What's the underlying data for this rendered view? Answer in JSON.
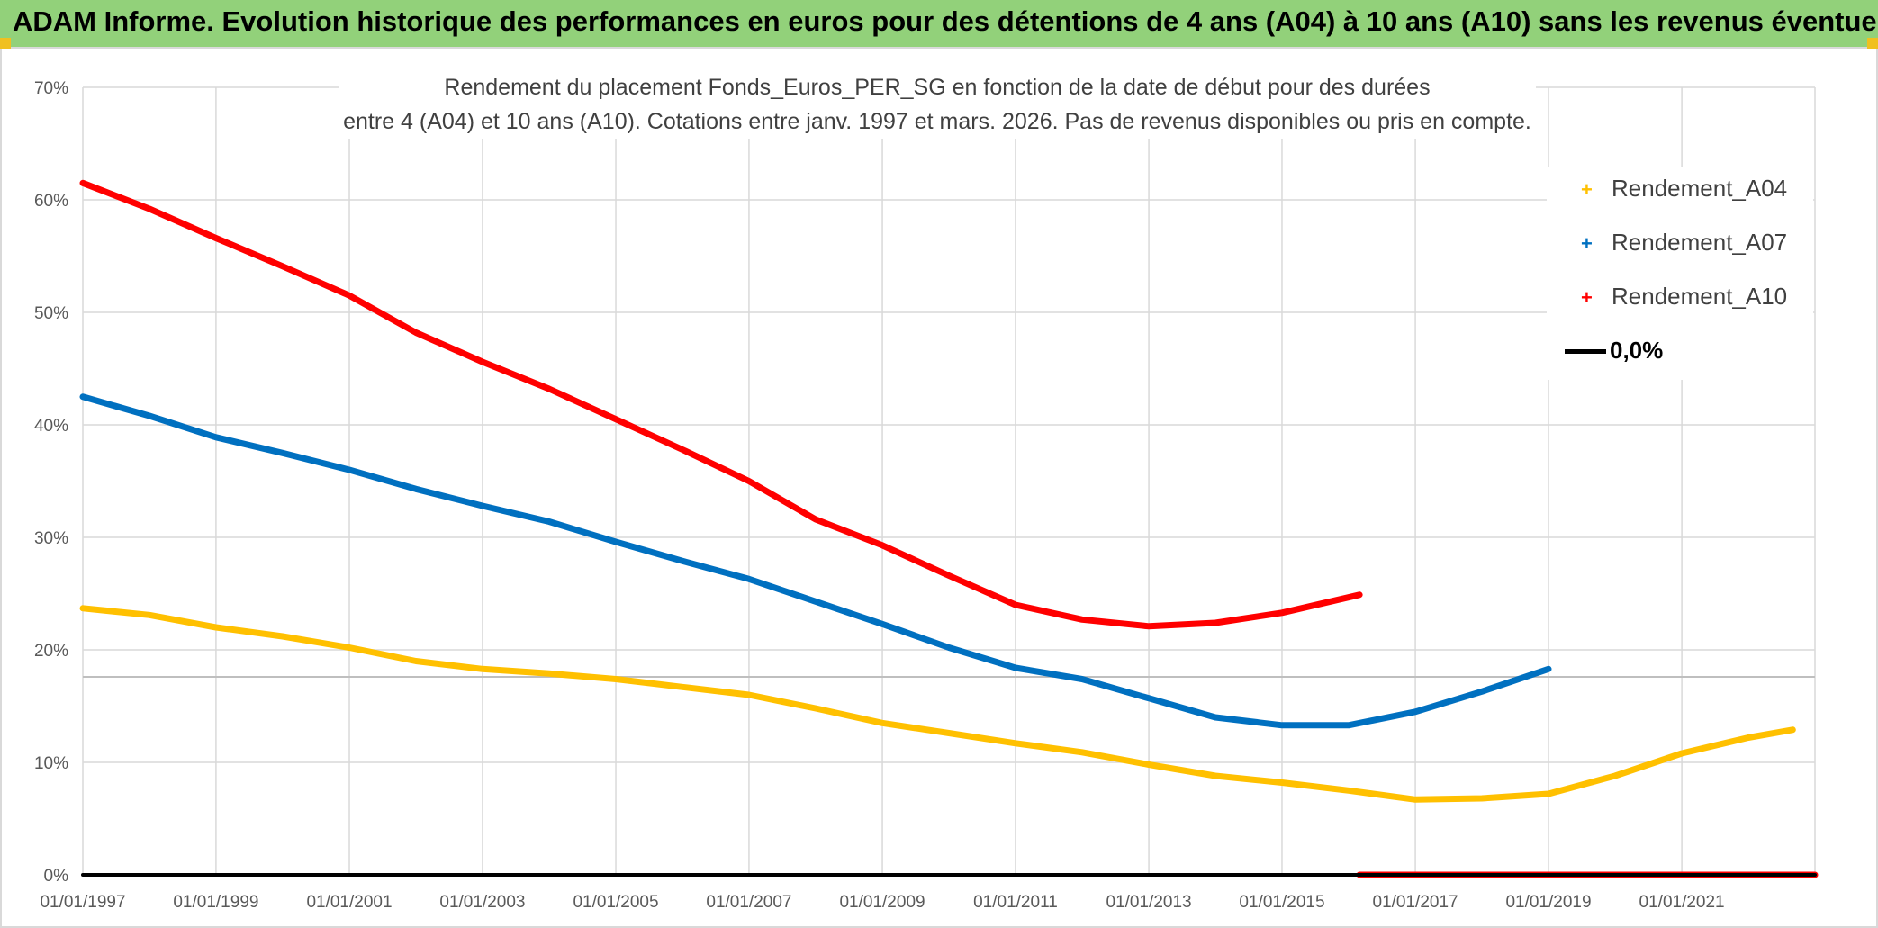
{
  "header": {
    "title": "ADAM Informe. Evolution historique des performances en euros pour des détentions de 4 ans (A04) à 10 ans (A10) sans les revenus éventuels",
    "background": "#92d17a"
  },
  "chart_data": {
    "type": "line",
    "title_lines": [
      "Rendement du placement Fonds_Euros_PER_SG en fonction de la date de début pour des durées",
      "entre 4 (A04) et 10 ans (A10). Cotations entre janv. 1997 et mars. 2026. Pas de revenus disponibles ou pris en compte."
    ],
    "xlabel": "",
    "ylabel": "",
    "xlim": [
      "1997-01-01",
      "2023-01-01"
    ],
    "ylim": [
      0,
      70
    ],
    "x_ticks": [
      "01/01/1997",
      "01/01/1999",
      "01/01/2001",
      "01/01/2003",
      "01/01/2005",
      "01/01/2007",
      "01/01/2009",
      "01/01/2011",
      "01/01/2013",
      "01/01/2015",
      "01/01/2017",
      "01/01/2019",
      "01/01/2021"
    ],
    "y_ticks": [
      "0%",
      "10%",
      "20%",
      "30%",
      "40%",
      "50%",
      "60%",
      "70%"
    ],
    "grid": true,
    "legend_position": "top-right",
    "series": [
      {
        "name": "Rendement_A04",
        "color": "#ffc000",
        "points": [
          [
            "1997-01-01",
            23.7
          ],
          [
            "1998-01-01",
            23.1
          ],
          [
            "1999-01-01",
            22.0
          ],
          [
            "2000-01-01",
            21.2
          ],
          [
            "2001-01-01",
            20.2
          ],
          [
            "2002-01-01",
            19.0
          ],
          [
            "2003-01-01",
            18.3
          ],
          [
            "2004-01-01",
            17.9
          ],
          [
            "2005-01-01",
            17.4
          ],
          [
            "2006-01-01",
            16.7
          ],
          [
            "2007-01-01",
            16.0
          ],
          [
            "2008-01-01",
            14.8
          ],
          [
            "2009-01-01",
            13.5
          ],
          [
            "2010-01-01",
            12.6
          ],
          [
            "2011-01-01",
            11.7
          ],
          [
            "2012-01-01",
            10.9
          ],
          [
            "2013-01-01",
            9.8
          ],
          [
            "2014-01-01",
            8.8
          ],
          [
            "2015-01-01",
            8.2
          ],
          [
            "2016-01-01",
            7.5
          ],
          [
            "2017-01-01",
            6.7
          ],
          [
            "2018-01-01",
            6.8
          ],
          [
            "2019-01-01",
            7.2
          ],
          [
            "2020-01-01",
            8.8
          ],
          [
            "2021-01-01",
            10.8
          ],
          [
            "2022-01-01",
            12.2
          ],
          [
            "2022-09-01",
            12.9
          ]
        ]
      },
      {
        "name": "Rendement_A07",
        "color": "#0070c0",
        "points": [
          [
            "1997-01-01",
            42.5
          ],
          [
            "1998-01-01",
            40.8
          ],
          [
            "1999-01-01",
            38.9
          ],
          [
            "2000-01-01",
            37.5
          ],
          [
            "2001-01-01",
            36.0
          ],
          [
            "2002-01-01",
            34.3
          ],
          [
            "2003-01-01",
            32.8
          ],
          [
            "2004-01-01",
            31.4
          ],
          [
            "2005-01-01",
            29.6
          ],
          [
            "2006-01-01",
            27.9
          ],
          [
            "2007-01-01",
            26.3
          ],
          [
            "2008-01-01",
            24.3
          ],
          [
            "2009-01-01",
            22.3
          ],
          [
            "2010-01-01",
            20.2
          ],
          [
            "2011-01-01",
            18.4
          ],
          [
            "2012-01-01",
            17.4
          ],
          [
            "2013-01-01",
            15.7
          ],
          [
            "2014-01-01",
            14.0
          ],
          [
            "2015-01-01",
            13.3
          ],
          [
            "2016-01-01",
            13.3
          ],
          [
            "2017-01-01",
            14.5
          ],
          [
            "2018-01-01",
            16.3
          ],
          [
            "2019-01-01",
            18.3
          ]
        ]
      },
      {
        "name": "Rendement_A10",
        "color": "#ff0000",
        "points": [
          [
            "1997-01-01",
            61.5
          ],
          [
            "1998-01-01",
            59.2
          ],
          [
            "1999-01-01",
            56.6
          ],
          [
            "2000-01-01",
            54.1
          ],
          [
            "2001-01-01",
            51.5
          ],
          [
            "2002-01-01",
            48.2
          ],
          [
            "2003-01-01",
            45.6
          ],
          [
            "2004-01-01",
            43.2
          ],
          [
            "2005-01-01",
            40.5
          ],
          [
            "2006-01-01",
            37.8
          ],
          [
            "2007-01-01",
            35.0
          ],
          [
            "2008-01-01",
            31.6
          ],
          [
            "2009-01-01",
            29.3
          ],
          [
            "2010-01-01",
            26.6
          ],
          [
            "2011-01-01",
            24.0
          ],
          [
            "2012-01-01",
            22.7
          ],
          [
            "2013-01-01",
            22.1
          ],
          [
            "2014-01-01",
            22.4
          ],
          [
            "2015-01-01",
            23.3
          ],
          [
            "2016-03-01",
            24.9
          ]
        ],
        "zero_segment": {
          "from": "2016-03-01",
          "to": "2023-01-01",
          "value": 0
        }
      },
      {
        "name": "0,0%",
        "color": "#000000",
        "points": [
          [
            "1997-01-01",
            0
          ],
          [
            "2023-01-01",
            0
          ]
        ]
      }
    ]
  }
}
